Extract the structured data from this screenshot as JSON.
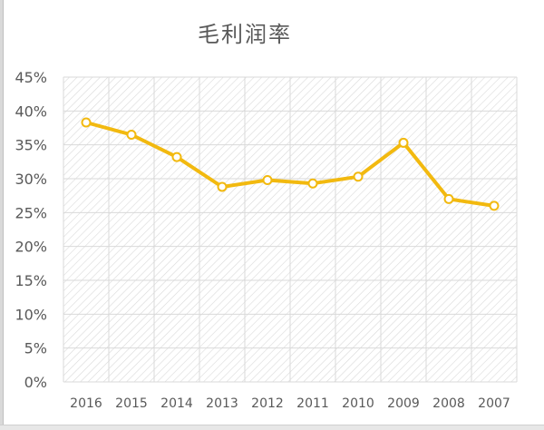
{
  "chart_data": {
    "type": "line",
    "title": "毛利润率",
    "categories": [
      "2016",
      "2015",
      "2014",
      "2013",
      "2012",
      "2011",
      "2010",
      "2009",
      "2008",
      "2007"
    ],
    "series": [
      {
        "values": [
          38.3,
          36.5,
          33.2,
          28.8,
          29.8,
          29.3,
          30.3,
          35.3,
          27.0,
          26.0
        ]
      }
    ],
    "yticks": [
      "0%",
      "5%",
      "10%",
      "15%",
      "20%",
      "25%",
      "30%",
      "35%",
      "40%",
      "45%"
    ],
    "ylim": [
      0,
      45
    ],
    "grid": true,
    "line_color": "#f2b90f",
    "marker_fill": "#ffffff",
    "hatch_color": "#d9d9d9"
  }
}
